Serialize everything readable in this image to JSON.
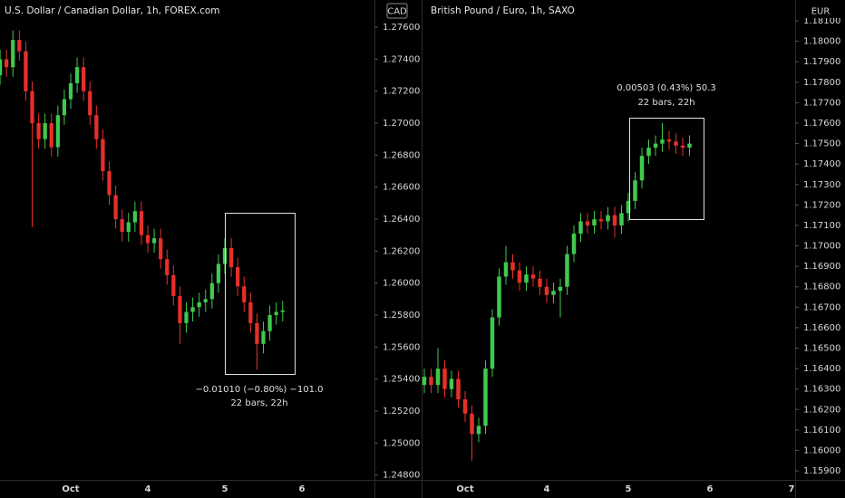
{
  "chart_data": [
    {
      "type": "candlestick",
      "title": "U.S. Dollar / Canadian Dollar, 1h, FOREX.com",
      "axis_label": "CAD",
      "up_color": "#3fc94e",
      "down_color": "#e5302a",
      "grid": false,
      "categories": [
        null,
        null,
        null,
        null,
        null,
        null,
        null,
        null,
        null,
        null,
        null,
        "Oct",
        null,
        null,
        null,
        null,
        null,
        null,
        null,
        null,
        null,
        null,
        null,
        "4",
        null,
        null,
        null,
        null,
        null,
        null,
        null,
        null,
        null,
        null,
        null,
        "5",
        null,
        null,
        null,
        null,
        null,
        null,
        null,
        null,
        null,
        null,
        null,
        "6"
      ],
      "open": [
        1.273,
        1.274,
        1.2735,
        1.2752,
        1.2745,
        1.272,
        1.27,
        1.269,
        1.27,
        1.2685,
        1.2705,
        1.2715,
        1.2725,
        1.2735,
        1.272,
        1.2705,
        1.269,
        1.267,
        1.2655,
        1.264,
        1.2632,
        1.2638,
        1.2645,
        1.263,
        1.2625,
        1.2628,
        1.2615,
        1.2605,
        1.2592,
        1.2575,
        1.2582,
        1.2585,
        1.2588,
        1.259,
        1.26,
        1.2612,
        1.2622,
        1.261,
        1.2598,
        1.2588,
        1.2575,
        1.2562,
        1.257,
        1.258,
        1.2582,
        null,
        null,
        null
      ],
      "high": [
        1.2746,
        1.2746,
        1.2758,
        1.2758,
        1.2751,
        1.2726,
        1.2706,
        1.2706,
        1.2706,
        1.2711,
        1.2721,
        1.2731,
        1.2741,
        1.2741,
        1.2726,
        1.2711,
        1.2696,
        1.2676,
        1.2661,
        1.2646,
        1.2644,
        1.2651,
        1.2651,
        1.2636,
        1.2634,
        1.2634,
        1.2621,
        1.2611,
        1.2598,
        1.2588,
        1.2591,
        1.2594,
        1.2596,
        1.2606,
        1.2618,
        1.2628,
        1.2628,
        1.2616,
        1.2604,
        1.2594,
        1.2581,
        1.2576,
        1.2586,
        1.2588,
        1.2589,
        null,
        null,
        null
      ],
      "low": [
        1.2724,
        1.2729,
        1.2729,
        1.2739,
        1.2714,
        1.2635,
        1.2684,
        1.2684,
        1.2679,
        1.2679,
        1.2699,
        1.2709,
        1.2719,
        1.2714,
        1.2699,
        1.2684,
        1.2664,
        1.2649,
        1.2634,
        1.2626,
        1.2626,
        1.2632,
        1.2624,
        1.2619,
        1.2619,
        1.2609,
        1.2599,
        1.2586,
        1.2562,
        1.2569,
        1.2576,
        1.2579,
        1.2582,
        1.2584,
        1.2594,
        1.2606,
        1.2604,
        1.2592,
        1.2582,
        1.2569,
        1.2546,
        1.2556,
        1.2564,
        1.2574,
        1.2576,
        null,
        null,
        null
      ],
      "close": [
        1.274,
        1.2735,
        1.2752,
        1.2745,
        1.272,
        1.27,
        1.269,
        1.27,
        1.2685,
        1.2705,
        1.2715,
        1.2725,
        1.2735,
        1.272,
        1.2705,
        1.269,
        1.267,
        1.2655,
        1.264,
        1.2632,
        1.2638,
        1.2645,
        1.263,
        1.2625,
        1.2628,
        1.2615,
        1.2605,
        1.2592,
        1.2575,
        1.2582,
        1.2585,
        1.2588,
        1.259,
        1.26,
        1.2612,
        1.2622,
        1.261,
        1.2598,
        1.2588,
        1.2575,
        1.2562,
        1.257,
        1.258,
        1.2582,
        1.2583,
        null,
        null,
        null
      ],
      "ylim": [
        1.2477,
        1.2777
      ],
      "yticks": [
        {
          "value": 1.248,
          "label": "1.24800"
        },
        {
          "value": 1.25,
          "label": "1.25000"
        },
        {
          "value": 1.252,
          "label": "1.25200"
        },
        {
          "value": 1.254,
          "label": "1.25400"
        },
        {
          "value": 1.256,
          "label": "1.25600"
        },
        {
          "value": 1.258,
          "label": "1.25800"
        },
        {
          "value": 1.26,
          "label": "1.26000"
        },
        {
          "value": 1.262,
          "label": "1.26200"
        },
        {
          "value": 1.264,
          "label": "1.26400"
        },
        {
          "value": 1.266,
          "label": "1.26600"
        },
        {
          "value": 1.268,
          "label": "1.26800"
        },
        {
          "value": 1.27,
          "label": "1.27000"
        },
        {
          "value": 1.272,
          "label": "1.27200"
        },
        {
          "value": 1.274,
          "label": "1.27400"
        },
        {
          "value": 1.276,
          "label": "1.27600"
        }
      ],
      "annotations": [
        "−0.01010 (−0.80%) −101.0",
        "22 bars, 22h"
      ]
    },
    {
      "type": "candlestick",
      "title": "British Pound / Euro, 1h, SAXO",
      "axis_label": "EUR",
      "up_color": "#3fc94e",
      "down_color": "#e5302a",
      "grid": false,
      "categories": [
        null,
        null,
        null,
        null,
        null,
        null,
        "Oct",
        null,
        null,
        null,
        null,
        null,
        null,
        null,
        null,
        null,
        null,
        null,
        "4",
        null,
        null,
        null,
        null,
        null,
        null,
        null,
        null,
        null,
        null,
        null,
        "5",
        null,
        null,
        null,
        null,
        null,
        null,
        null,
        null,
        null,
        null,
        null,
        "6",
        null,
        null,
        null,
        null,
        null,
        null,
        null,
        null,
        null,
        null,
        null,
        "7"
      ],
      "open": [
        1.1632,
        1.1636,
        1.1632,
        1.164,
        1.163,
        1.1635,
        1.1625,
        1.1618,
        1.1608,
        1.1612,
        1.164,
        1.1665,
        1.1685,
        1.1692,
        1.1688,
        1.1682,
        1.1686,
        1.1684,
        1.168,
        1.1676,
        1.1678,
        1.168,
        1.1696,
        1.1706,
        1.1712,
        1.171,
        1.1713,
        1.1712,
        1.1715,
        1.171,
        1.1716,
        1.1722,
        1.1732,
        1.1744,
        1.1748,
        1.175,
        1.1752,
        1.1751,
        1.1749,
        1.1748,
        null,
        null,
        null,
        null,
        null,
        null,
        null,
        null,
        null,
        null,
        null,
        null,
        null,
        null,
        null
      ],
      "high": [
        1.164,
        1.164,
        1.165,
        1.1644,
        1.1639,
        1.1639,
        1.1629,
        1.1622,
        1.1616,
        1.1644,
        1.1669,
        1.1689,
        1.17,
        1.1696,
        1.1692,
        1.169,
        1.169,
        1.1688,
        1.1684,
        1.1682,
        1.1684,
        1.17,
        1.171,
        1.1716,
        1.1716,
        1.1717,
        1.1717,
        1.1719,
        1.1719,
        1.172,
        1.1726,
        1.1736,
        1.1748,
        1.1752,
        1.1754,
        1.176,
        1.1756,
        1.1755,
        1.1753,
        1.1754,
        null,
        null,
        null,
        null,
        null,
        null,
        null,
        null,
        null,
        null,
        null,
        null,
        null,
        null,
        null
      ],
      "low": [
        1.1628,
        1.1628,
        1.1628,
        1.1626,
        1.1626,
        1.1621,
        1.1614,
        1.1595,
        1.1604,
        1.1608,
        1.1636,
        1.1661,
        1.1681,
        1.1684,
        1.1678,
        1.1678,
        1.168,
        1.1676,
        1.1672,
        1.1672,
        1.1665,
        1.1676,
        1.1692,
        1.1702,
        1.1706,
        1.1706,
        1.1708,
        1.1708,
        1.1704,
        1.1706,
        1.1712,
        1.1718,
        1.1728,
        1.174,
        1.1744,
        1.1746,
        1.1747,
        1.1745,
        1.1744,
        1.1744,
        null,
        null,
        null,
        null,
        null,
        null,
        null,
        null,
        null,
        null,
        null,
        null,
        null,
        null,
        null
      ],
      "close": [
        1.1636,
        1.1632,
        1.164,
        1.163,
        1.1635,
        1.1625,
        1.1618,
        1.1608,
        1.1612,
        1.164,
        1.1665,
        1.1685,
        1.1692,
        1.1688,
        1.1682,
        1.1686,
        1.1684,
        1.168,
        1.1676,
        1.1678,
        1.168,
        1.1696,
        1.1706,
        1.1712,
        1.171,
        1.1713,
        1.1712,
        1.1715,
        1.171,
        1.1716,
        1.1722,
        1.1732,
        1.1744,
        1.1748,
        1.175,
        1.1752,
        1.1751,
        1.1749,
        1.1748,
        1.175,
        null,
        null,
        null,
        null,
        null,
        null,
        null,
        null,
        null,
        null,
        null,
        null,
        null,
        null,
        null
      ],
      "ylim": [
        1.15856,
        1.18202
      ],
      "yticks": [
        {
          "value": 1.159,
          "label": "1.15900"
        },
        {
          "value": 1.16,
          "label": "1.16000"
        },
        {
          "value": 1.161,
          "label": "1.16100"
        },
        {
          "value": 1.162,
          "label": "1.16200"
        },
        {
          "value": 1.163,
          "label": "1.16300"
        },
        {
          "value": 1.164,
          "label": "1.16400"
        },
        {
          "value": 1.165,
          "label": "1.16500"
        },
        {
          "value": 1.166,
          "label": "1.16600"
        },
        {
          "value": 1.167,
          "label": "1.16700"
        },
        {
          "value": 1.168,
          "label": "1.16800"
        },
        {
          "value": 1.169,
          "label": "1.16900"
        },
        {
          "value": 1.17,
          "label": "1.17000"
        },
        {
          "value": 1.171,
          "label": "1.17100"
        },
        {
          "value": 1.172,
          "label": "1.17200"
        },
        {
          "value": 1.173,
          "label": "1.17300"
        },
        {
          "value": 1.174,
          "label": "1.17400"
        },
        {
          "value": 1.175,
          "label": "1.17500"
        },
        {
          "value": 1.176,
          "label": "1.17600"
        },
        {
          "value": 1.177,
          "label": "1.17700"
        },
        {
          "value": 1.178,
          "label": "1.17800"
        },
        {
          "value": 1.179,
          "label": "1.17900"
        },
        {
          "value": 1.18,
          "label": "1.18000"
        },
        {
          "value": 1.181,
          "label": "1.18100"
        }
      ],
      "annotations": [
        "0.00503 (0.43%) 50.3",
        "22 bars, 22h"
      ]
    }
  ]
}
